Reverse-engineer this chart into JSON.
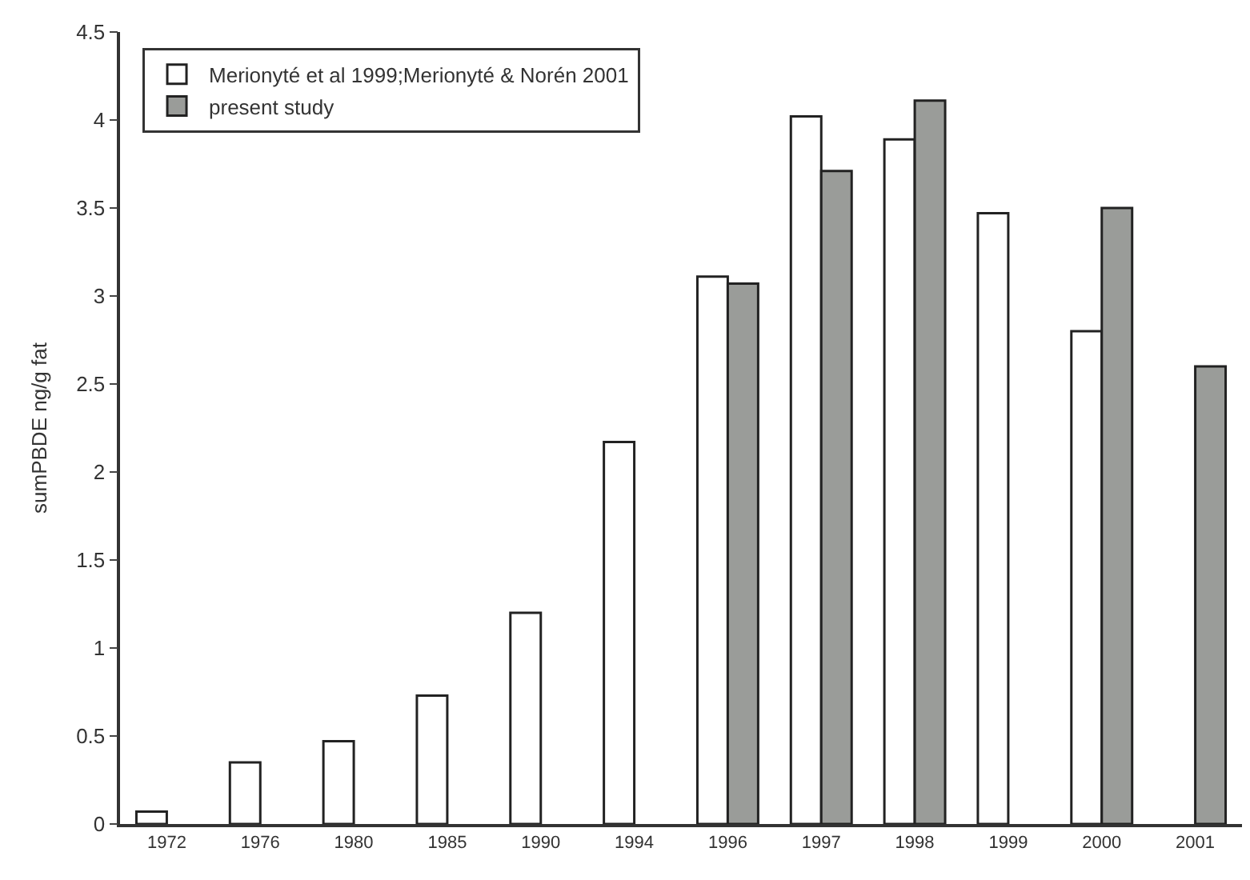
{
  "chart_data": {
    "type": "bar",
    "ylabel": "sumPBDE ng/g fat",
    "categories": [
      "1972",
      "1976",
      "1980",
      "1985",
      "1990",
      "1994",
      "1996",
      "1997",
      "1998",
      "1999",
      "2000",
      "2001"
    ],
    "series": [
      {
        "name": "Merionyté et al 1999;Merionyté & Norén 2001",
        "color": "#ffffff",
        "values": [
          0.07,
          0.35,
          0.47,
          0.73,
          1.2,
          2.17,
          3.11,
          4.02,
          3.89,
          3.47,
          2.8,
          null
        ]
      },
      {
        "name": "present study",
        "color": "#9a9c99",
        "values": [
          null,
          null,
          null,
          null,
          null,
          null,
          3.07,
          3.71,
          4.11,
          null,
          3.5,
          2.6
        ]
      }
    ],
    "ylim": [
      0,
      4.5
    ],
    "yticks": [
      0,
      0.5,
      1,
      1.5,
      2,
      2.5,
      3,
      3.5,
      4,
      4.5
    ],
    "legend": "top left"
  }
}
